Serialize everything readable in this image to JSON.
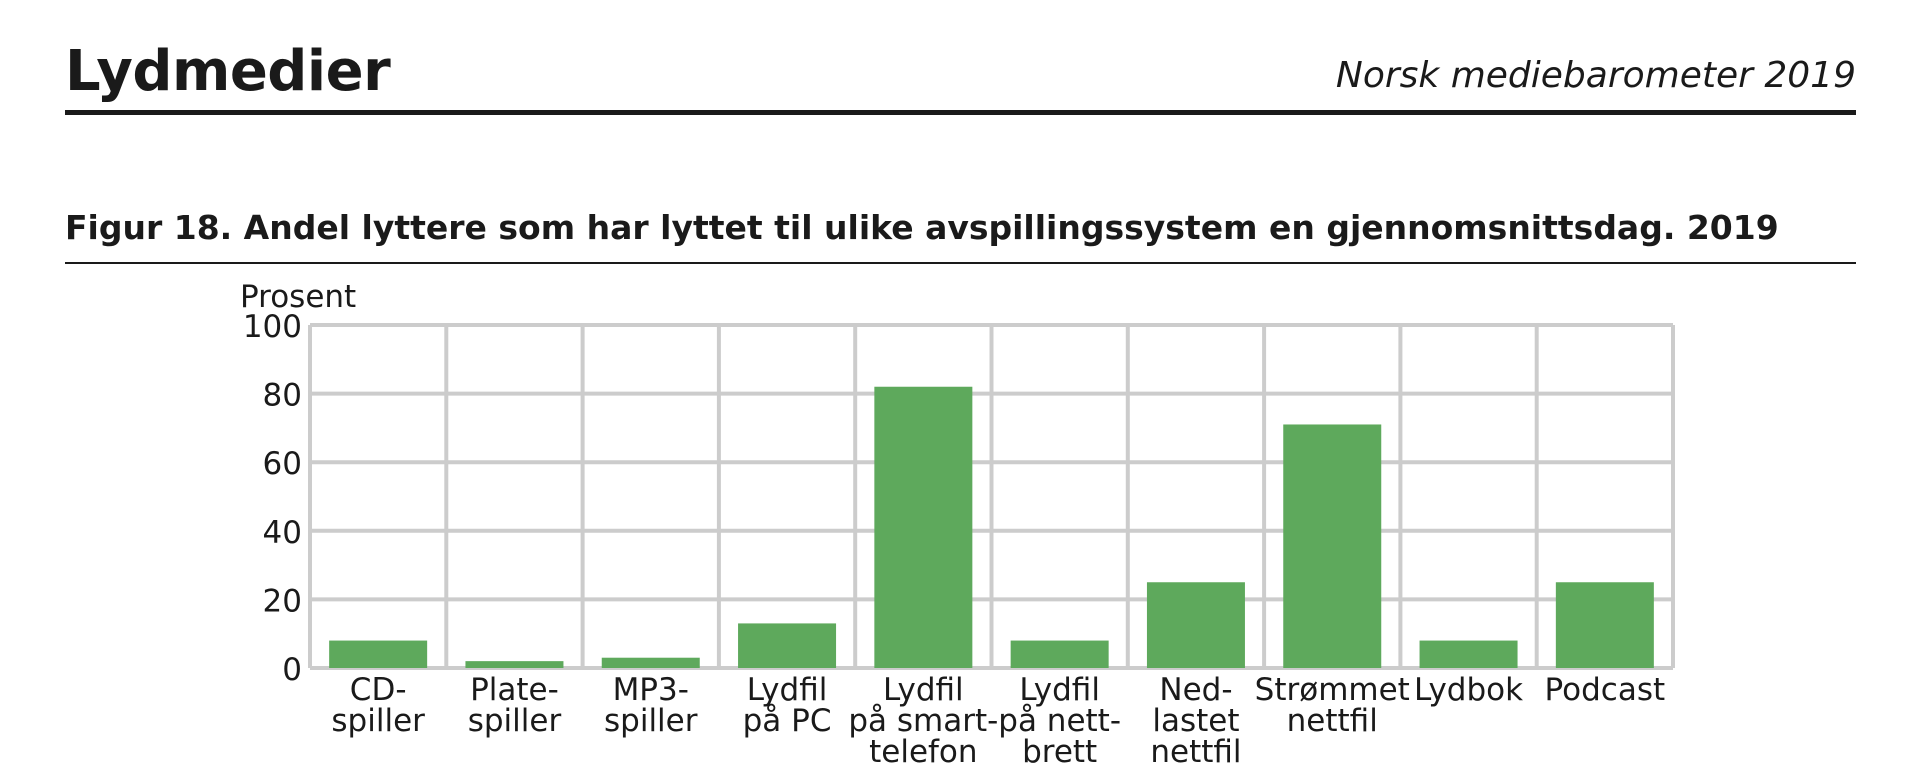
{
  "header": {
    "section_title": "Lydmedier",
    "document_title": "Norsk mediebarometer 2019"
  },
  "figure": {
    "title": "Figur 18. Andel lyttere som har lyttet til ulike avspillingssystem en gjennomsnittsdag. 2019"
  },
  "chart_data": {
    "type": "bar",
    "title": "Figur 18. Andel lyttere som har lyttet til ulike avspillingssystem en gjennomsnittsdag. 2019",
    "ylabel": "Prosent",
    "xlabel": "",
    "ylim": [
      0,
      100
    ],
    "yticks": [
      0,
      20,
      40,
      60,
      80,
      100
    ],
    "grid": true,
    "bar_color": "#5ea95c",
    "grid_color": "#cccccc",
    "categories": [
      [
        "CD-",
        "spiller"
      ],
      [
        "Plate-",
        "spiller"
      ],
      [
        "MP3-",
        "spiller"
      ],
      [
        "Lydfil",
        "på PC"
      ],
      [
        "Lydfil",
        "på smart-",
        "telefon"
      ],
      [
        "Lydfil",
        "på nett-",
        "brett"
      ],
      [
        "Ned-",
        "lastet",
        "nettfil"
      ],
      [
        "Strømmet",
        "nettfil"
      ],
      [
        "Lydbok"
      ],
      [
        "Podcast"
      ]
    ],
    "values": [
      8,
      2,
      3,
      13,
      82,
      8,
      25,
      71,
      8,
      25
    ]
  }
}
